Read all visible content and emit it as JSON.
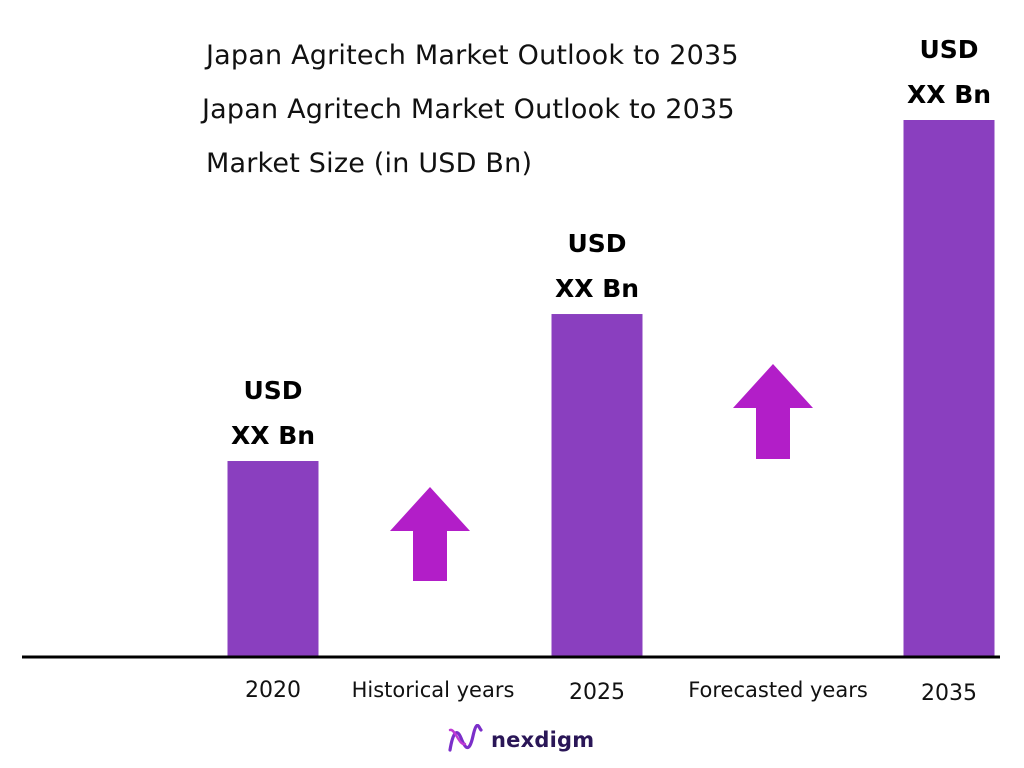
{
  "chart_data": {
    "type": "bar",
    "titles": [
      "Japan Agritech Market Outlook to 2035",
      "Japan Agritech Market Outlook to 2035",
      "Market Size (in USD Bn)"
    ],
    "categories": [
      "2020",
      "2025",
      "2035"
    ],
    "values": [
      1.0,
      1.75,
      2.74
    ],
    "value_labels": [
      [
        "USD",
        "XX Bn"
      ],
      [
        "USD",
        "XX Bn"
      ],
      [
        "USD",
        "XX Bn"
      ]
    ],
    "period_labels": [
      "Historical years",
      "Forecasted years"
    ],
    "ylim": [
      0,
      2.74
    ],
    "grid": false,
    "bar_color": "#8a3fbf",
    "arrow_color": "#b21ec8",
    "axis_color": "#000000"
  },
  "brand": {
    "name": "nexdigm",
    "icon": "nexdigm-logo-icon",
    "color": "#2a1657"
  }
}
